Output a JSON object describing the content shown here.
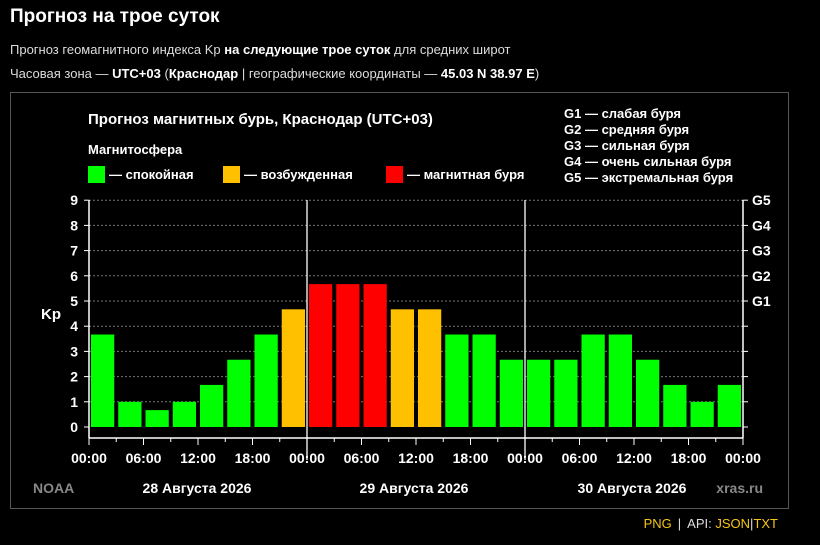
{
  "page": {
    "title": "Прогноз на трое суток",
    "subtitle1": {
      "pre": "Прогноз геомагнитного индекса Kp ",
      "bold": "на следующие трое суток",
      "post": " для средних широт"
    },
    "subtitle2": {
      "pre": "Часовая зона — ",
      "tz": "UTC+03",
      "mid1": " (",
      "city": "Краснодар",
      "mid2": " | географические координаты — ",
      "coords": "45.03 N 38.97 E",
      "post": ")"
    }
  },
  "colors": {
    "calm": "#00ff00",
    "excited": "#ffc000",
    "storm": "#ff0000",
    "background": "#000000"
  },
  "legend": {
    "heading": "Магнитосфера",
    "items": [
      {
        "label": "— спокойная",
        "color": "#00ff00"
      },
      {
        "label": "— возбужденная",
        "color": "#ffc000"
      },
      {
        "label": "— магнитная буря",
        "color": "#ff0000"
      }
    ],
    "g_scale": [
      "G1 — слабая буря",
      "G2 — средняя буря",
      "G3 — сильная буря",
      "G4 — очень сильная буря",
      "G5 — экстремальная буря"
    ]
  },
  "chart_data": {
    "type": "bar",
    "title": "Прогноз магнитных бурь, Краснодар (UTC+03)",
    "ylabel": "Kp",
    "ylim": [
      0,
      9
    ],
    "yticks": [
      "0",
      "1",
      "2",
      "3",
      "4",
      "5",
      "6",
      "7",
      "8",
      "9"
    ],
    "right_ticks": [
      {
        "kp": 5,
        "label": "G1"
      },
      {
        "kp": 6,
        "label": "G2"
      },
      {
        "kp": 7,
        "label": "G3"
      },
      {
        "kp": 8,
        "label": "G4"
      },
      {
        "kp": 9,
        "label": "G5"
      }
    ],
    "grid": true,
    "x_tick_labels": [
      "00:00",
      "06:00",
      "12:00",
      "18:00",
      "00:00",
      "06:00",
      "12:00",
      "18:00",
      "00:00",
      "06:00",
      "12:00",
      "18:00",
      "00:00"
    ],
    "days": [
      "28 Августа 2026",
      "29 Августа 2026",
      "30 Августа 2026"
    ],
    "values": [
      3.67,
      1.0,
      0.67,
      1.0,
      1.67,
      2.67,
      3.67,
      4.67,
      5.67,
      5.67,
      5.67,
      4.67,
      4.67,
      3.67,
      3.67,
      2.67,
      2.67,
      2.67,
      3.67,
      3.67,
      2.67,
      1.67,
      1.0,
      1.67
    ],
    "levels": [
      "calm",
      "calm",
      "calm",
      "calm",
      "calm",
      "calm",
      "calm",
      "excited",
      "storm",
      "storm",
      "storm",
      "excited",
      "excited",
      "calm",
      "calm",
      "calm",
      "calm",
      "calm",
      "calm",
      "calm",
      "calm",
      "calm",
      "calm",
      "calm"
    ],
    "source_left": "NOAA",
    "source_right": "xras.ru"
  },
  "footer": {
    "png": "PNG",
    "sep": "|",
    "api": "API:",
    "json": "JSON",
    "txt": "TXT"
  }
}
